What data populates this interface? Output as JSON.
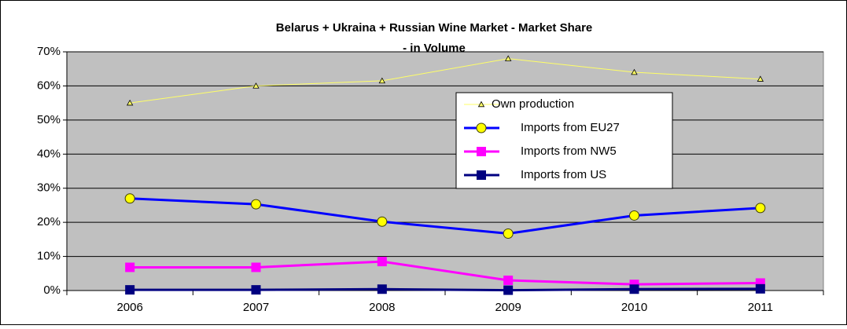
{
  "chart_data": {
    "type": "line",
    "title": "Belarus + Ukraina + Russian  Wine Market   -  Market Share",
    "subtitle": "-  in Volume",
    "categories": [
      "2006",
      "2007",
      "2008",
      "2009",
      "2010",
      "2011"
    ],
    "series": [
      {
        "name": "Own production",
        "color": "#ffff66",
        "marker": "triangle",
        "values": [
          55,
          60,
          61.5,
          68,
          64,
          62
        ]
      },
      {
        "name": "Imports from EU27",
        "color": "#0000ff",
        "marker": "circle",
        "values": [
          27,
          25.3,
          20.2,
          16.7,
          22,
          24.2
        ]
      },
      {
        "name": "Imports from NW5",
        "color": "#ff00ff",
        "marker": "square",
        "values": [
          6.8,
          6.8,
          8.5,
          3,
          1.8,
          2.2
        ]
      },
      {
        "name": "Imports from US",
        "color": "#000080",
        "marker": "square",
        "values": [
          0.2,
          0.2,
          0.4,
          0.1,
          0.4,
          0.5
        ]
      }
    ],
    "ylim": [
      0,
      70
    ],
    "yticks": [
      {
        "value": 0,
        "label": "0%"
      },
      {
        "value": 10,
        "label": "10%"
      },
      {
        "value": 20,
        "label": "20%"
      },
      {
        "value": 30,
        "label": "30%"
      },
      {
        "value": 40,
        "label": "40%"
      },
      {
        "value": 50,
        "label": "50%"
      },
      {
        "value": 60,
        "label": "60%"
      },
      {
        "value": 70,
        "label": "70%"
      }
    ],
    "grid": true,
    "plot_background": "#c0c0c0"
  }
}
